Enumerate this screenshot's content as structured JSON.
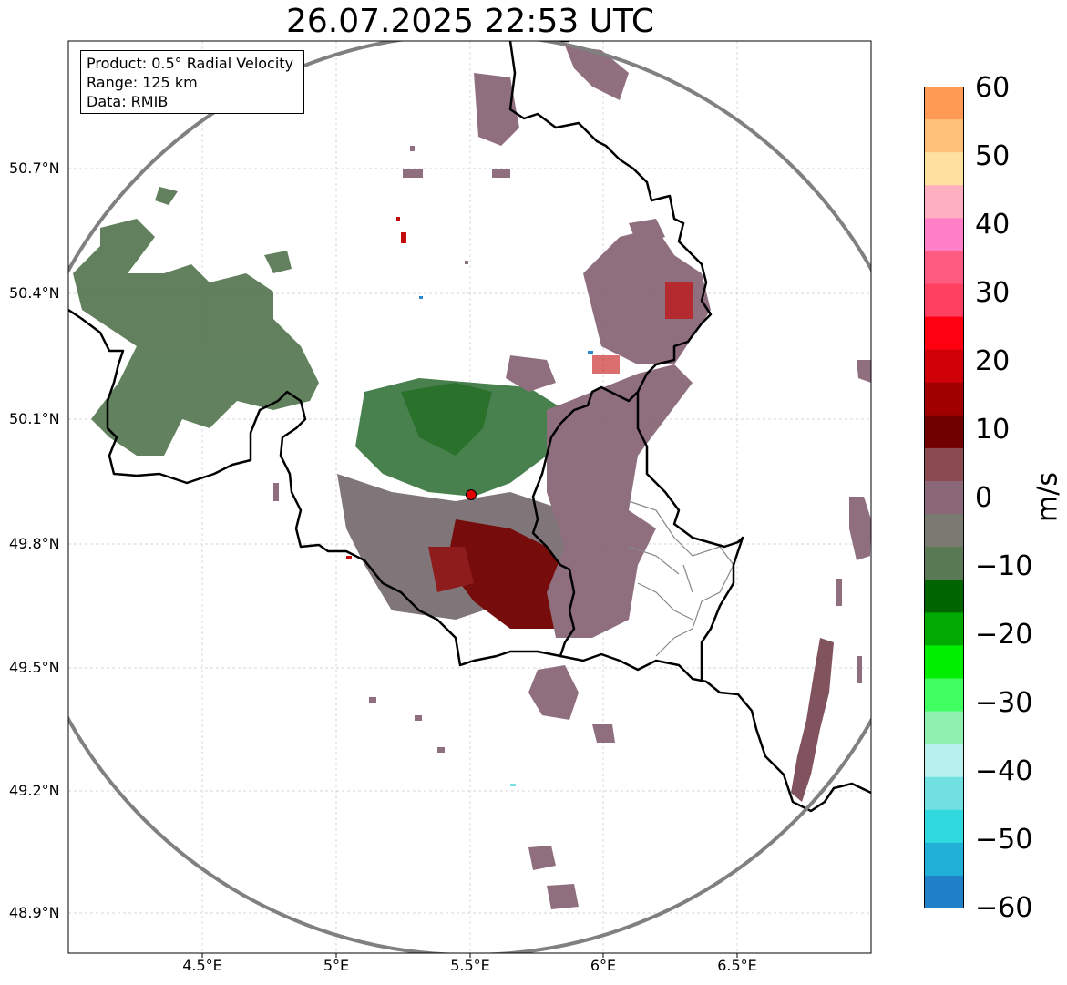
{
  "title": "26.07.2025 22:53 UTC",
  "info": {
    "product": "Product: 0.5° Radial Velocity",
    "range": "Range: 125 km",
    "source": "Data: RMIB"
  },
  "axes": {
    "y_ticks": [
      "50.7°N",
      "50.4°N",
      "50.1°N",
      "49.8°N",
      "49.5°N",
      "49.2°N",
      "48.9°N"
    ],
    "x_ticks": [
      "4.5°E",
      "5°E",
      "5.5°E",
      "6°E",
      "6.5°E"
    ]
  },
  "colorbar": {
    "unit": "m/s",
    "ticks": [
      "60",
      "50",
      "40",
      "30",
      "20",
      "10",
      "0",
      "−10",
      "−20",
      "−30",
      "−40",
      "−50",
      "−60"
    ],
    "range": [
      -60,
      60
    ],
    "stops": [
      "#ff9a55",
      "#ffc07a",
      "#ffe0a0",
      "#ffb0c0",
      "#ff80c8",
      "#ff5a80",
      "#ff4060",
      "#ff0010",
      "#d00008",
      "#a00000",
      "#700000",
      "#8a4a50",
      "#8a6878",
      "#7a7a70",
      "#5a7a55",
      "#006400",
      "#00aa00",
      "#00ee00",
      "#40ff60",
      "#90f0b0",
      "#b8f0f0",
      "#70e0e0",
      "#30d8e0",
      "#20b0d8",
      "#2080c8"
    ]
  },
  "colors": {
    "range_ring": "#808080",
    "borders": "#000000",
    "provinces": "#888888",
    "radar_site": "#e00000"
  }
}
